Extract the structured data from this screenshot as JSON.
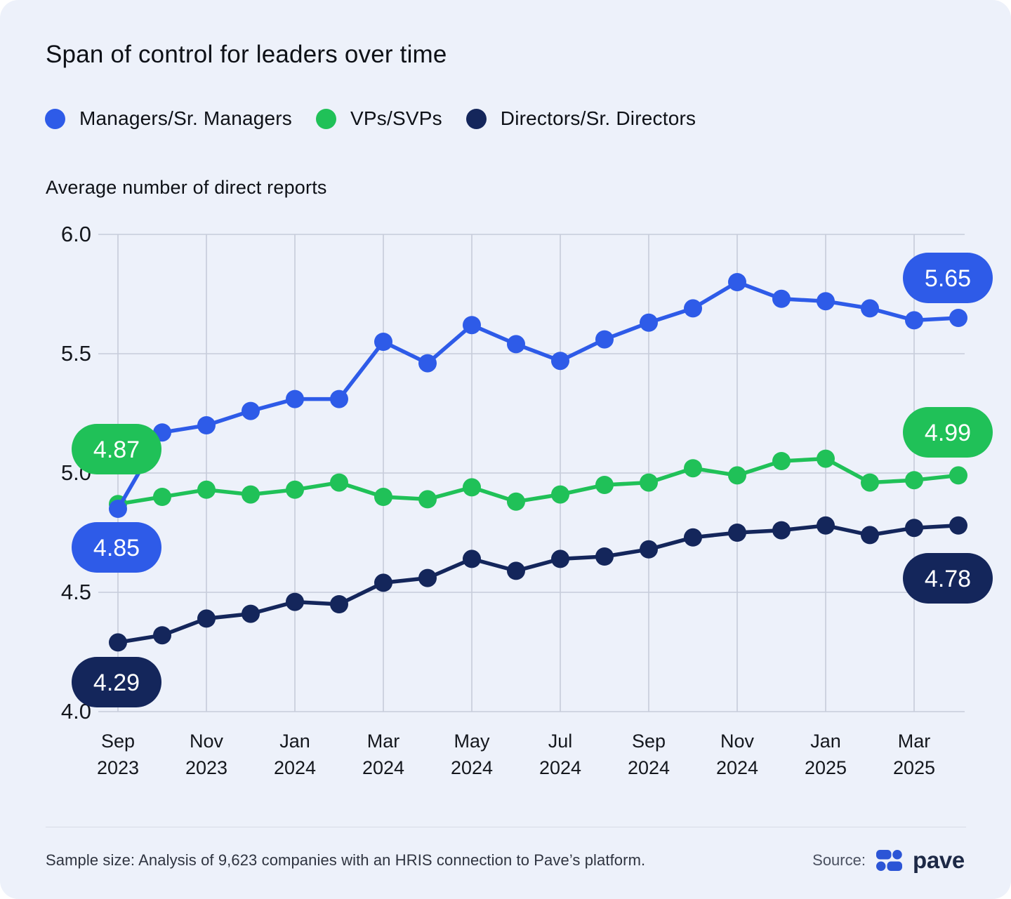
{
  "title": "Span of control for leaders over time",
  "y_axis_title": "Average number of direct reports",
  "legend": [
    {
      "label": "Managers/Sr. Managers",
      "color": "#2E5BE8"
    },
    {
      "label": "VPs/SVPs",
      "color": "#20C158"
    },
    {
      "label": "Directors/Sr. Directors",
      "color": "#14265B"
    }
  ],
  "footer": {
    "sample_note": "Sample size: Analysis of 9,623 companies with an HRIS connection to Pave’s platform.",
    "source_label": "Source:",
    "brand": "pave"
  },
  "colors": {
    "background": "#EDF1FA",
    "gridline": "#c6ccda",
    "axis_text": "#14171d",
    "blue": "#2E5BE8",
    "green": "#20C158",
    "navy": "#14265B"
  },
  "chart_data": {
    "type": "line",
    "x": [
      "Sep 2023",
      "Oct 2023",
      "Nov 2023",
      "Dec 2023",
      "Jan 2024",
      "Feb 2024",
      "Mar 2024",
      "Apr 2024",
      "May 2024",
      "Jun 2024",
      "Jul 2024",
      "Aug 2024",
      "Sep 2024",
      "Oct 2024",
      "Nov 2024",
      "Dec 2024",
      "Jan 2025",
      "Feb 2025",
      "Mar 2025",
      "Apr 2025"
    ],
    "x_tick_every": 2,
    "ylim": [
      4.0,
      6.0
    ],
    "y_ticks": [
      "6.0",
      "5.5",
      "5.0",
      "4.5",
      "4.0"
    ],
    "grid": true,
    "legend_position": "top",
    "series": [
      {
        "name": "Managers/Sr. Managers",
        "color": "#2E5BE8",
        "values": [
          4.85,
          5.17,
          5.2,
          5.26,
          5.31,
          5.31,
          5.55,
          5.46,
          5.62,
          5.54,
          5.47,
          5.56,
          5.63,
          5.69,
          5.8,
          5.73,
          5.72,
          5.69,
          5.64,
          5.65
        ],
        "start_label": "4.85",
        "end_label": "5.65"
      },
      {
        "name": "VPs/SVPs",
        "color": "#20C158",
        "values": [
          4.87,
          4.9,
          4.93,
          4.91,
          4.93,
          4.96,
          4.9,
          4.89,
          4.94,
          4.88,
          4.91,
          4.95,
          4.96,
          5.02,
          4.99,
          5.05,
          5.06,
          4.96,
          4.97,
          4.99
        ],
        "start_label": "4.87",
        "end_label": "4.99"
      },
      {
        "name": "Directors/Sr. Directors",
        "color": "#14265B",
        "values": [
          4.29,
          4.32,
          4.39,
          4.41,
          4.46,
          4.45,
          4.54,
          4.56,
          4.64,
          4.59,
          4.64,
          4.65,
          4.68,
          4.73,
          4.75,
          4.76,
          4.78,
          4.74,
          4.77,
          4.78
        ],
        "start_label": "4.29",
        "end_label": "4.78"
      }
    ]
  }
}
